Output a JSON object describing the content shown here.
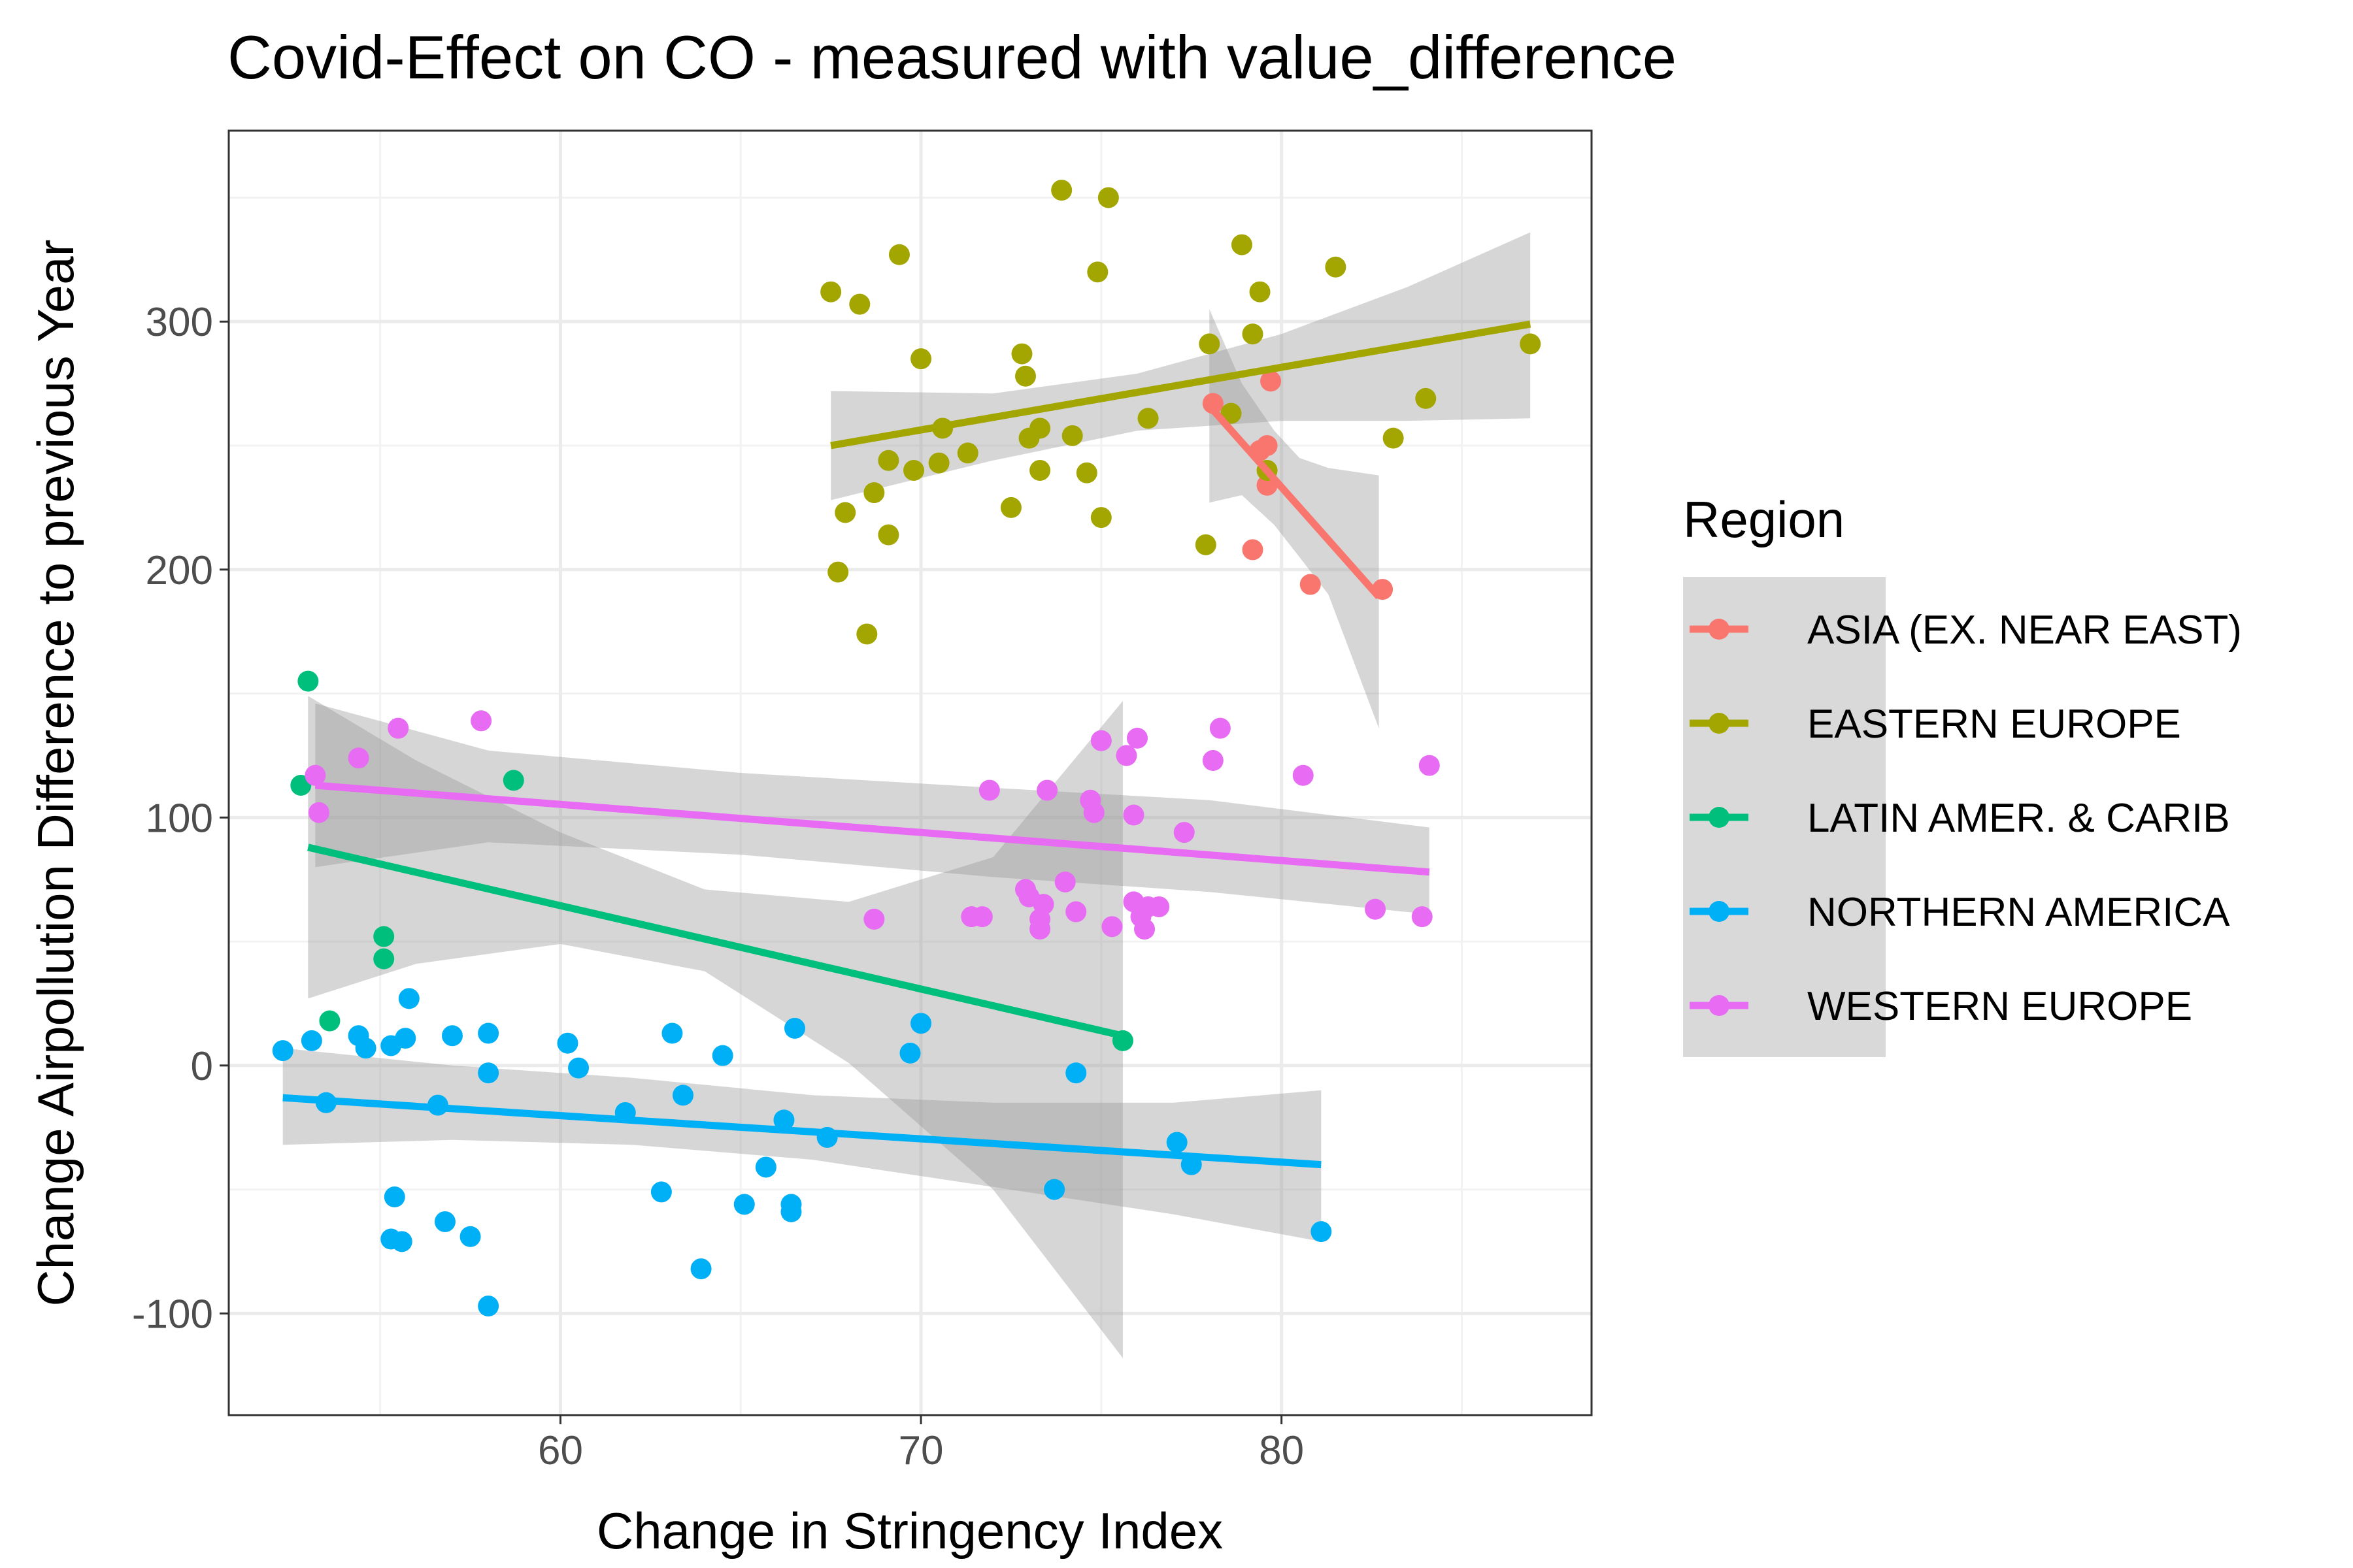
{
  "chart_data": {
    "type": "scatter",
    "title": "Covid-Effect on CO - measured with value_difference",
    "xlabel": "Change in Stringency Index",
    "ylabel": "Change Airpollution Difference to previous Year",
    "xlim": [
      50.8,
      88.6
    ],
    "ylim": [
      -141,
      377
    ],
    "x_ticks": [
      60,
      70,
      80
    ],
    "y_ticks": [
      -100,
      0,
      100,
      200,
      300
    ],
    "grid": true,
    "smooth": "linear fit with gray confidence band per series",
    "legend": {
      "title": "Region",
      "position": "right"
    },
    "series": [
      {
        "name": "ASIA (EX. NEAR EAST)",
        "color": "#F8766D",
        "points": [
          [
            78.1,
            267
          ],
          [
            79.2,
            208
          ],
          [
            79.4,
            248
          ],
          [
            79.6,
            250
          ],
          [
            79.7,
            276
          ],
          [
            79.6,
            234
          ],
          [
            80.8,
            194
          ],
          [
            82.8,
            192
          ]
        ],
        "fit": {
          "x": [
            78.0,
            82.7
          ],
          "y": [
            266,
            189
          ]
        },
        "band": {
          "x": [
            78.0,
            78.9,
            79.8,
            80.5,
            81.3,
            82.7
          ],
          "upper": [
            305,
            275,
            256,
            245,
            241,
            238
          ],
          "lower": [
            227,
            230,
            218,
            205,
            190,
            136
          ]
        }
      },
      {
        "name": "EASTERN EUROPE",
        "color": "#A3A500",
        "points": [
          [
            67.5,
            312
          ],
          [
            67.7,
            199
          ],
          [
            67.9,
            223
          ],
          [
            68.3,
            307
          ],
          [
            68.5,
            174
          ],
          [
            68.7,
            231
          ],
          [
            69.1,
            244
          ],
          [
            69.1,
            214
          ],
          [
            69.4,
            327
          ],
          [
            69.8,
            240
          ],
          [
            70.0,
            285
          ],
          [
            70.5,
            243
          ],
          [
            70.6,
            257
          ],
          [
            71.3,
            247
          ],
          [
            72.5,
            225
          ],
          [
            72.8,
            287
          ],
          [
            72.9,
            278
          ],
          [
            73.0,
            253
          ],
          [
            73.3,
            257
          ],
          [
            73.3,
            240
          ],
          [
            73.9,
            353
          ],
          [
            74.2,
            254
          ],
          [
            74.6,
            239
          ],
          [
            74.9,
            320
          ],
          [
            75.0,
            221
          ],
          [
            75.2,
            350
          ],
          [
            76.3,
            261
          ],
          [
            78.0,
            291
          ],
          [
            77.9,
            210
          ],
          [
            78.6,
            263
          ],
          [
            78.9,
            331
          ],
          [
            79.2,
            295
          ],
          [
            79.4,
            312
          ],
          [
            79.6,
            240
          ],
          [
            81.5,
            322
          ],
          [
            83.1,
            253
          ],
          [
            84.0,
            269
          ],
          [
            86.9,
            291
          ]
        ],
        "fit": {
          "x": [
            67.5,
            86.9
          ],
          "y": [
            250,
            299
          ]
        },
        "band": {
          "x": [
            67.5,
            72.0,
            76.0,
            80.0,
            83.5,
            86.9
          ],
          "upper": [
            272,
            271,
            279,
            295,
            314,
            336
          ],
          "lower": [
            228,
            244,
            256,
            260,
            260,
            261
          ]
        }
      },
      {
        "name": "LATIN AMER. & CARIB",
        "color": "#00BF7D",
        "points": [
          [
            52.8,
            113
          ],
          [
            53.0,
            155
          ],
          [
            53.6,
            18
          ],
          [
            55.1,
            52
          ],
          [
            55.1,
            43
          ],
          [
            58.7,
            115
          ],
          [
            75.6,
            10
          ]
        ],
        "fit": {
          "x": [
            53.0,
            75.6
          ],
          "y": [
            88,
            12
          ]
        },
        "band": {
          "x": [
            53.0,
            56.0,
            60.0,
            64.0,
            68.0,
            72.0,
            75.6
          ],
          "upper": [
            149,
            123,
            94,
            71,
            66,
            84,
            147
          ],
          "lower": [
            27,
            41,
            49,
            38,
            1,
            -50,
            -118
          ]
        }
      },
      {
        "name": "NORTHERN AMERICA",
        "color": "#00B0F6",
        "points": [
          [
            52.3,
            6
          ],
          [
            53.1,
            10
          ],
          [
            53.5,
            -15
          ],
          [
            54.4,
            12
          ],
          [
            54.6,
            7
          ],
          [
            55.3,
            8
          ],
          [
            55.4,
            -53
          ],
          [
            55.3,
            -70
          ],
          [
            55.6,
            -71
          ],
          [
            55.7,
            11
          ],
          [
            55.8,
            27
          ],
          [
            56.6,
            -16
          ],
          [
            56.8,
            -63
          ],
          [
            57.0,
            12
          ],
          [
            57.5,
            -69
          ],
          [
            58.0,
            13
          ],
          [
            58.0,
            -3
          ],
          [
            58.0,
            -97
          ],
          [
            60.2,
            9
          ],
          [
            60.5,
            -1
          ],
          [
            61.8,
            -19
          ],
          [
            62.8,
            -51
          ],
          [
            63.1,
            13
          ],
          [
            63.4,
            -12
          ],
          [
            63.9,
            -82
          ],
          [
            64.5,
            4
          ],
          [
            65.1,
            -56
          ],
          [
            65.7,
            -41
          ],
          [
            66.2,
            -22
          ],
          [
            66.4,
            -56
          ],
          [
            66.4,
            -59
          ],
          [
            66.5,
            15
          ],
          [
            67.4,
            -29
          ],
          [
            69.7,
            5
          ],
          [
            70.0,
            17
          ],
          [
            73.7,
            -50
          ],
          [
            74.3,
            -3
          ],
          [
            77.1,
            -31
          ],
          [
            77.5,
            -40
          ],
          [
            81.1,
            -67
          ]
        ],
        "fit": {
          "x": [
            52.3,
            81.1
          ],
          "y": [
            -13,
            -40
          ]
        },
        "band": {
          "x": [
            52.3,
            57.0,
            62.0,
            67.0,
            72.0,
            77.0,
            81.1
          ],
          "upper": [
            7,
            0,
            -5,
            -12,
            -15,
            -15,
            -10
          ],
          "lower": [
            -32,
            -30,
            -32,
            -38,
            -49,
            -60,
            -71
          ]
        }
      },
      {
        "name": "WESTERN EUROPE",
        "color": "#E76BF3",
        "points": [
          [
            53.2,
            117
          ],
          [
            53.3,
            102
          ],
          [
            54.4,
            124
          ],
          [
            55.5,
            136
          ],
          [
            57.8,
            139
          ],
          [
            68.7,
            59
          ],
          [
            71.4,
            60
          ],
          [
            71.7,
            60
          ],
          [
            71.9,
            111
          ],
          [
            72.9,
            71
          ],
          [
            73.0,
            68
          ],
          [
            73.3,
            59
          ],
          [
            73.3,
            55
          ],
          [
            73.4,
            65
          ],
          [
            73.5,
            111
          ],
          [
            74.0,
            74
          ],
          [
            74.3,
            62
          ],
          [
            74.7,
            107
          ],
          [
            74.8,
            102
          ],
          [
            75.0,
            131
          ],
          [
            75.3,
            56
          ],
          [
            75.7,
            125
          ],
          [
            75.9,
            101
          ],
          [
            75.9,
            66
          ],
          [
            76.0,
            132
          ],
          [
            76.1,
            60
          ],
          [
            76.3,
            64
          ],
          [
            76.2,
            55
          ],
          [
            76.6,
            64
          ],
          [
            77.3,
            94
          ],
          [
            78.1,
            123
          ],
          [
            78.3,
            136
          ],
          [
            80.6,
            117
          ],
          [
            82.6,
            63
          ],
          [
            83.9,
            60
          ],
          [
            84.1,
            121
          ]
        ],
        "fit": {
          "x": [
            53.2,
            84.1
          ],
          "y": [
            113,
            78
          ]
        },
        "band": {
          "x": [
            53.2,
            58.0,
            65.0,
            72.0,
            78.0,
            84.1
          ],
          "upper": [
            146,
            127,
            118,
            112,
            107,
            96
          ],
          "lower": [
            80,
            90,
            85,
            76,
            70,
            61
          ]
        }
      }
    ]
  }
}
